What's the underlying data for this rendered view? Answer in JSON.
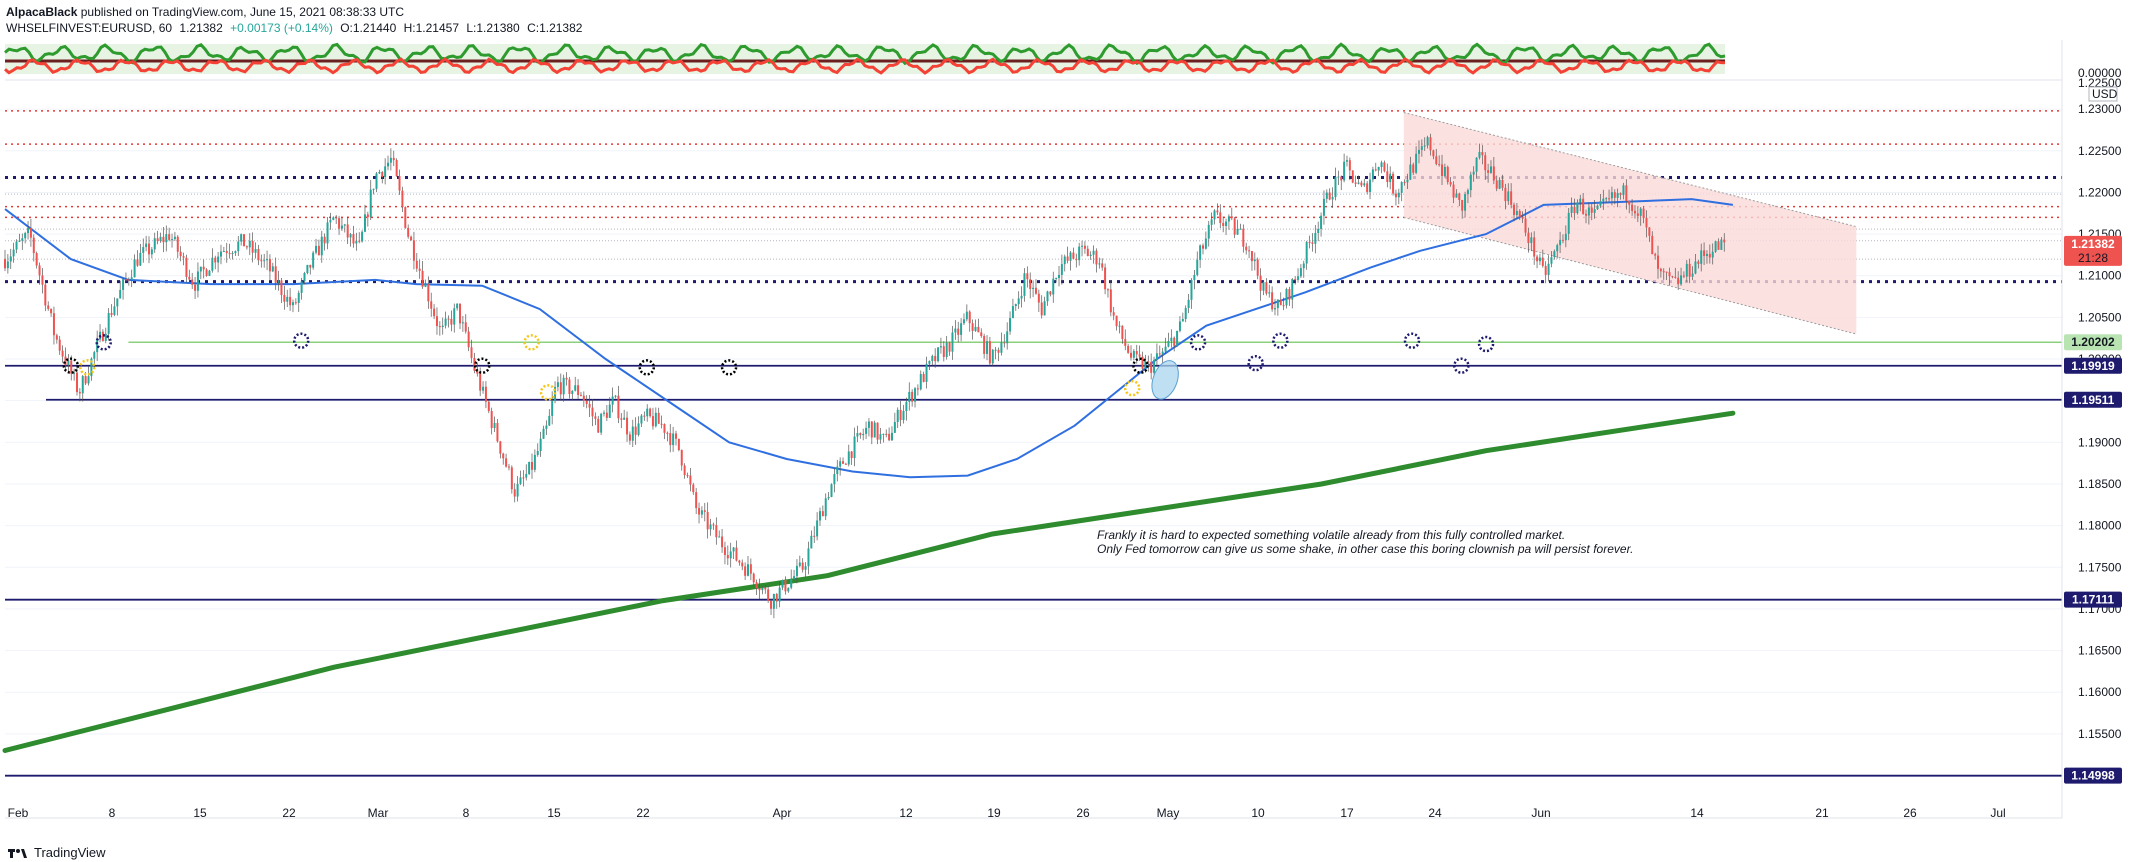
{
  "header": {
    "author": "AlpacaBlack",
    "published_text": "published on TradingView.com, June 15, 2021 08:38:33 UTC",
    "symbol": "WHSELFINVEST:EURUSD, 60",
    "last": "1.21382",
    "change": "+0.00173 (+0.14%)",
    "open": "O:1.21440",
    "high": "H:1.21457",
    "low": "L:1.21380",
    "close": "C:1.21382"
  },
  "brand": {
    "name": "TradingView"
  },
  "oscillator": {
    "axis_label": "0.00000",
    "top_label": "1.22500",
    "unit": "USD"
  },
  "chart_data": {
    "type": "candlestick",
    "ylim": [
      1.1473,
      1.2335
    ],
    "y_ticks": [
      "1.23000",
      "1.22500",
      "1.22000",
      "1.21500",
      "1.21000",
      "1.20500",
      "1.20000",
      "1.19500",
      "1.19000",
      "1.18500",
      "1.18000",
      "1.17500",
      "1.17000",
      "1.16500",
      "1.16000",
      "1.15500",
      "1.15000"
    ],
    "x_ticks": [
      "Feb",
      "8",
      "15",
      "22",
      "Mar",
      "8",
      "15",
      "22",
      "Apr",
      "12",
      "19",
      "26",
      "May",
      "10",
      "17",
      "24",
      "Jun",
      "14",
      "21",
      "26",
      "Jul"
    ],
    "price_labels": [
      {
        "text": "1.21382",
        "sub": "21:28",
        "value": 1.21382,
        "bg": "#ef5350",
        "fg": "#ffffff"
      },
      {
        "text": "1.20202",
        "value": 1.20202,
        "bg": "#b7e4b0",
        "fg": "#131722"
      },
      {
        "text": "1.19919",
        "value": 1.19919,
        "bg": "#1e1a6e",
        "fg": "#ffffff"
      },
      {
        "text": "1.19511",
        "value": 1.19511,
        "bg": "#1e1a6e",
        "fg": "#ffffff"
      },
      {
        "text": "1.17111",
        "value": 1.17111,
        "bg": "#1e1a6e",
        "fg": "#ffffff"
      },
      {
        "text": "1.14998",
        "value": 1.14998,
        "bg": "#1e1a6e",
        "fg": "#ffffff"
      }
    ],
    "annotation": [
      "Frankly it is hard to expected something volatile already from this fully controlled market.",
      "Only Fed tomorrow can give us some shake, in  other case this boring clownish pa will persist forever."
    ],
    "levels": {
      "red_dotted": [
        1.2298,
        1.2258,
        1.2183,
        1.217
      ],
      "navy_dotted": [
        1.2218,
        1.2093
      ],
      "grey_dotted": [
        1.2198,
        1.2156,
        1.2142,
        1.212
      ],
      "green_solid": 1.20202,
      "navy_solid": [
        1.19919,
        1.19511,
        1.17111,
        1.14998
      ]
    },
    "price_path": [
      [
        0,
        1.212
      ],
      [
        3,
        1.215
      ],
      [
        6,
        1.203
      ],
      [
        9,
        1.196
      ],
      [
        11,
        1.201
      ],
      [
        13,
        1.206
      ],
      [
        16,
        1.212
      ],
      [
        20,
        1.215
      ],
      [
        23,
        1.209
      ],
      [
        26,
        1.213
      ],
      [
        29,
        1.214
      ],
      [
        32,
        1.211
      ],
      [
        35,
        1.206
      ],
      [
        37,
        1.211
      ],
      [
        40,
        1.217
      ],
      [
        43,
        1.213
      ],
      [
        45,
        1.222
      ],
      [
        47,
        1.224
      ],
      [
        49,
        1.215
      ],
      [
        51,
        1.209
      ],
      [
        53,
        1.203
      ],
      [
        55,
        1.206
      ],
      [
        57,
        1.199
      ],
      [
        60,
        1.19
      ],
      [
        62,
        1.184
      ],
      [
        64,
        1.187
      ],
      [
        66,
        1.192
      ],
      [
        67,
        1.197
      ],
      [
        70,
        1.196
      ],
      [
        72,
        1.192
      ],
      [
        74,
        1.195
      ],
      [
        76,
        1.191
      ],
      [
        78,
        1.193
      ],
      [
        80,
        1.192
      ],
      [
        82,
        1.189
      ],
      [
        84,
        1.182
      ],
      [
        87,
        1.178
      ],
      [
        89,
        1.176
      ],
      [
        91,
        1.174
      ],
      [
        93,
        1.171
      ],
      [
        95,
        1.173
      ],
      [
        97,
        1.175
      ],
      [
        98,
        1.178
      ],
      [
        100,
        1.184
      ],
      [
        102,
        1.188
      ],
      [
        105,
        1.192
      ],
      [
        107,
        1.19
      ],
      [
        109,
        1.194
      ],
      [
        111,
        1.197
      ],
      [
        113,
        1.2
      ],
      [
        115,
        1.202
      ],
      [
        117,
        1.205
      ],
      [
        120,
        1.2
      ],
      [
        122,
        1.204
      ],
      [
        124,
        1.21
      ],
      [
        126,
        1.206
      ],
      [
        128,
        1.211
      ],
      [
        131,
        1.213
      ],
      [
        133,
        1.212
      ],
      [
        135,
        1.204
      ],
      [
        137,
        1.2
      ],
      [
        139,
        1.199
      ],
      [
        141,
        1.201
      ],
      [
        143,
        1.204
      ],
      [
        145,
        1.212
      ],
      [
        147,
        1.217
      ],
      [
        149,
        1.216
      ],
      [
        151,
        1.214
      ],
      [
        153,
        1.208
      ],
      [
        155,
        1.206
      ],
      [
        157,
        1.21
      ],
      [
        159,
        1.215
      ],
      [
        161,
        1.22
      ],
      [
        163,
        1.223
      ],
      [
        165,
        1.22
      ],
      [
        167,
        1.224
      ],
      [
        169,
        1.22
      ],
      [
        171,
        1.223
      ],
      [
        173,
        1.226
      ],
      [
        175,
        1.222
      ],
      [
        177,
        1.218
      ],
      [
        179,
        1.224
      ],
      [
        181,
        1.222
      ],
      [
        183,
        1.219
      ],
      [
        185,
        1.215
      ],
      [
        187,
        1.21
      ],
      [
        189,
        1.214
      ],
      [
        191,
        1.219
      ],
      [
        193,
        1.217
      ],
      [
        195,
        1.219
      ],
      [
        197,
        1.22
      ],
      [
        199,
        1.217
      ],
      [
        201,
        1.21
      ],
      [
        203,
        1.209
      ],
      [
        205,
        1.211
      ],
      [
        207,
        1.213
      ],
      [
        209,
        1.2138
      ]
    ],
    "ma_fast_path": [
      [
        0,
        1.218
      ],
      [
        8,
        1.212
      ],
      [
        15,
        1.2095
      ],
      [
        25,
        1.209
      ],
      [
        35,
        1.209
      ],
      [
        45,
        1.2095
      ],
      [
        50,
        1.209
      ],
      [
        58,
        1.2088
      ],
      [
        65,
        1.206
      ],
      [
        73,
        1.2
      ],
      [
        82,
        1.194
      ],
      [
        88,
        1.19
      ],
      [
        95,
        1.188
      ],
      [
        103,
        1.1865
      ],
      [
        110,
        1.1858
      ],
      [
        117,
        1.186
      ],
      [
        123,
        1.188
      ],
      [
        130,
        1.192
      ],
      [
        135,
        1.196
      ],
      [
        140,
        1.2
      ],
      [
        146,
        1.204
      ],
      [
        152,
        1.206
      ],
      [
        158,
        1.208
      ],
      [
        166,
        1.211
      ],
      [
        172,
        1.213
      ],
      [
        180,
        1.215
      ],
      [
        187,
        1.2185
      ],
      [
        195,
        1.2188
      ],
      [
        205,
        1.2192
      ],
      [
        210,
        1.2185
      ]
    ],
    "ma_slow_path": [
      [
        0,
        1.153
      ],
      [
        20,
        1.158
      ],
      [
        40,
        1.163
      ],
      [
        60,
        1.167
      ],
      [
        80,
        1.171
      ],
      [
        100,
        1.174
      ],
      [
        120,
        1.179
      ],
      [
        140,
        1.182
      ],
      [
        160,
        1.185
      ],
      [
        180,
        1.189
      ],
      [
        200,
        1.192
      ],
      [
        210,
        1.1935
      ]
    ],
    "channel": {
      "upper": [
        [
          170,
          1.2296
        ],
        [
          225,
          1.2159
        ]
      ],
      "lower": [
        [
          170,
          1.217
        ],
        [
          225,
          1.203
        ]
      ]
    },
    "x_range": [
      0,
      250
    ]
  }
}
